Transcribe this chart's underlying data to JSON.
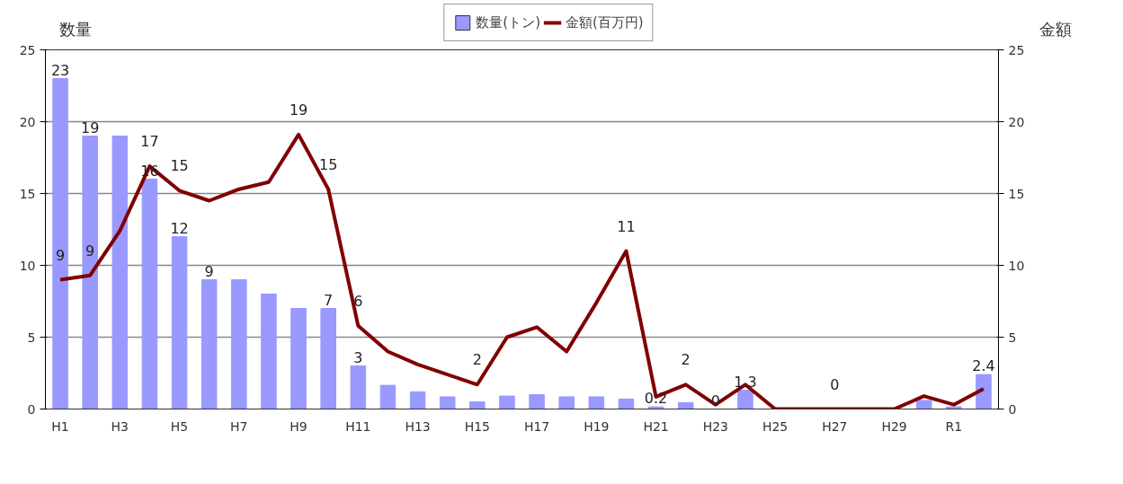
{
  "chart_data": {
    "type": "bar",
    "categories": [
      "H1",
      null,
      "H3",
      null,
      "H5",
      null,
      "H7",
      null,
      "H9",
      null,
      "H11",
      null,
      "H13",
      null,
      "H15",
      null,
      "H17",
      null,
      "H19",
      null,
      "H21",
      null,
      "H23",
      null,
      "H25",
      null,
      "H27",
      null,
      "H29",
      null,
      "R1",
      null
    ],
    "ylabel": "数量",
    "y2label": "金額",
    "ylim": [
      0,
      25
    ],
    "yticks": [
      0,
      5,
      10,
      15,
      20,
      25
    ],
    "y2lim": [
      0,
      25
    ],
    "y2ticks": [
      0,
      5,
      10,
      15,
      20,
      25
    ],
    "grid": "y",
    "legend": "top",
    "series": [
      {
        "name": "数量(トン)",
        "color": "#9999ff",
        "values": [
          23,
          19,
          19,
          16,
          12,
          9,
          9,
          8,
          7,
          7,
          3,
          1.65,
          1.2,
          0.85,
          0.5,
          0.9,
          1.0,
          0.85,
          0.85,
          0.7,
          0.15,
          0.45,
          0,
          1.3,
          0,
          0,
          0,
          0,
          0,
          0.6,
          0.15,
          2.4
        ],
        "value_labels": [
          "23",
          "19",
          null,
          "16",
          "12",
          "9",
          null,
          null,
          null,
          "7",
          "3",
          null,
          null,
          null,
          null,
          null,
          null,
          null,
          null,
          null,
          "0.2",
          null,
          "0",
          "1.3",
          null,
          null,
          null,
          null,
          null,
          null,
          null,
          "2.4"
        ]
      },
      {
        "name": "金額(百万円)",
        "type": "line",
        "axis": "y2",
        "color": "#800000",
        "values": [
          9,
          9.3,
          12.4,
          16.9,
          15.2,
          14.5,
          15.3,
          15.8,
          19.1,
          15.3,
          5.8,
          4.0,
          3.1,
          2.4,
          1.7,
          5.0,
          5.7,
          4.0,
          7.4,
          11,
          0.85,
          1.7,
          0.3,
          1.7,
          0,
          0,
          0,
          0,
          0,
          0.9,
          0.3,
          1.4
        ],
        "value_labels": [
          "9",
          "9",
          null,
          "17",
          "15",
          null,
          null,
          null,
          "19",
          "15",
          "6",
          null,
          null,
          null,
          "2",
          null,
          null,
          null,
          null,
          "11",
          null,
          "2",
          null,
          null,
          null,
          null,
          "0",
          null,
          null,
          null,
          null,
          null
        ]
      }
    ]
  }
}
